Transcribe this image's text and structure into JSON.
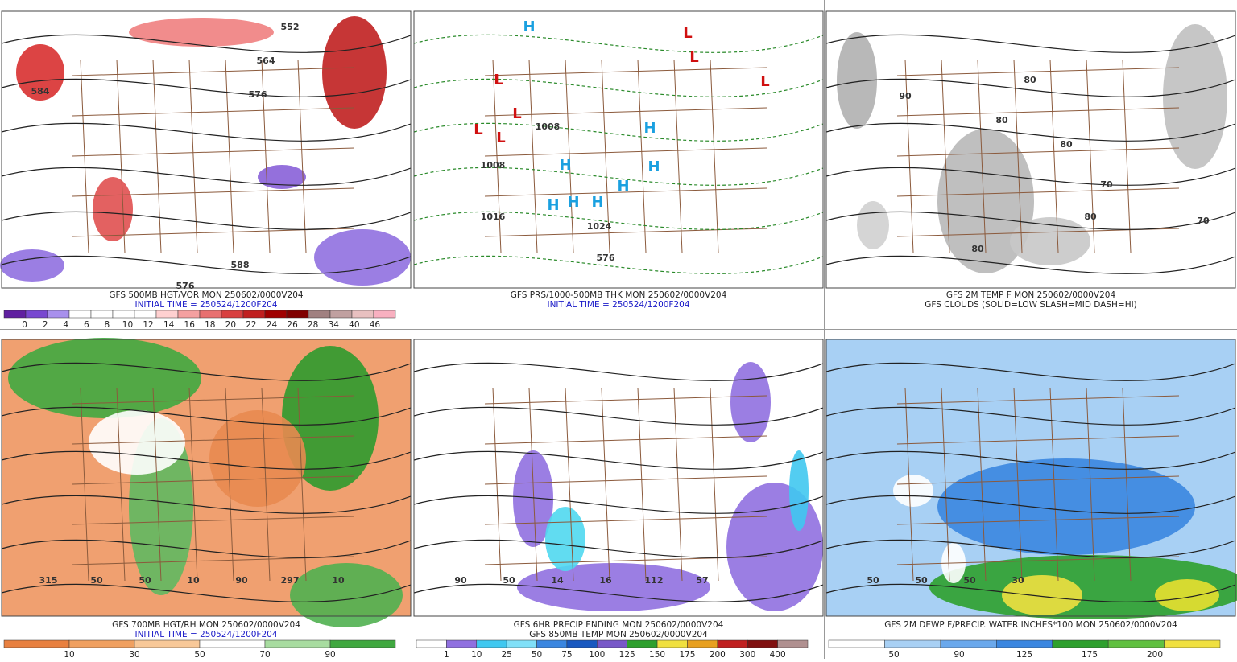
{
  "panels": [
    {
      "title": "GFS 500MB HGT/VOR MON 250602/0000V204",
      "subtitle": "INITIAL TIME = 250524/1200F204",
      "colorbar": [
        0,
        2,
        4,
        6,
        8,
        10,
        12,
        14,
        16,
        18,
        20,
        22,
        24,
        26,
        28,
        34,
        40,
        46
      ],
      "labels": [
        "552",
        "564",
        "576",
        "584",
        "588",
        "576"
      ]
    },
    {
      "title": "GFS PRS/1000-500MB THK MON 250602/0000V204",
      "subtitle": "INITIAL TIME = 250524/1200F204",
      "labels": [
        "H",
        "H",
        "H",
        "H",
        "H",
        "H",
        "H",
        "H",
        "L",
        "L",
        "L",
        "L",
        "L",
        "L",
        "L",
        "1008",
        "1008",
        "1016",
        "576",
        "1024"
      ]
    },
    {
      "title": "GFS 2M TEMP F MON 250602/0000V204",
      "subtitle": "GFS CLOUDS (SOLID=LOW SLASH=MID DASH=HI)",
      "labels": [
        "80",
        "80",
        "80",
        "90",
        "70",
        "80",
        "80",
        "70"
      ]
    },
    {
      "title": "GFS 700MB HGT/RH MON 250602/0000V204",
      "subtitle": "INITIAL TIME = 250524/1200F204",
      "colorbar": [
        10,
        30,
        50,
        70,
        90
      ],
      "labels": [
        "315",
        "50",
        "50",
        "10",
        "90",
        "297",
        "10"
      ]
    },
    {
      "title": "GFS 6HR PRECIP ENDING MON 250602/0000V204",
      "subtitle": "GFS 850MB TEMP MON 250602/0000V204",
      "colorbar": [
        1,
        10,
        25,
        50,
        75,
        100,
        125,
        150,
        175,
        200,
        300,
        400
      ],
      "labels": [
        "90",
        "50",
        "14",
        "16",
        "112",
        "57"
      ]
    },
    {
      "title": "GFS 2M DEWP F/PRECIP. WATER INCHES*100 MON 250602/0000V204",
      "colorbar": [
        50,
        90,
        125,
        175,
        200
      ],
      "labels": [
        "50",
        "50",
        "50",
        "30"
      ]
    }
  ]
}
